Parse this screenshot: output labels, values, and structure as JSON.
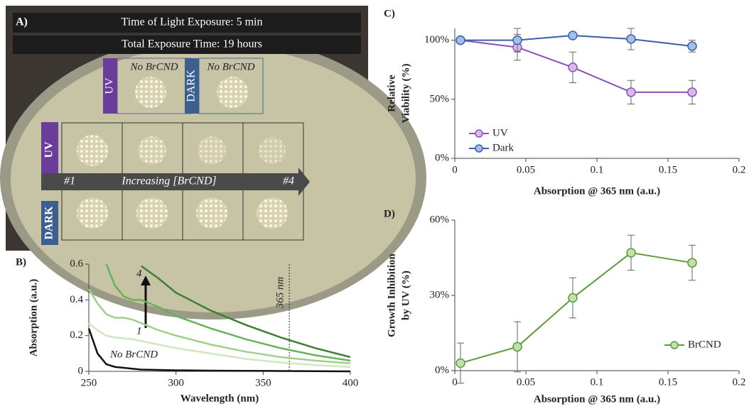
{
  "photo": {
    "label": "A)",
    "banner": [
      "Time of Light Exposure: 5 min",
      "Total Exposure Time: 19 hours"
    ],
    "controls": [
      {
        "condition": "UV",
        "sample": "No BrCND"
      },
      {
        "condition": "DARK",
        "sample": "No BrCND"
      }
    ],
    "rows": [
      "UV",
      "DARK"
    ],
    "arrow": {
      "start": "#1",
      "text": "Increasing [BrCND]",
      "end": "#4"
    }
  },
  "chart_data": [
    {
      "type": "line",
      "panel_label": "B)",
      "x_label": "Wavelength (nm)",
      "y_label": [
        "Absorption (a.u.)"
      ],
      "x": [
        250,
        255,
        260,
        265,
        270,
        275,
        280,
        290,
        300,
        320,
        340,
        360,
        380,
        400
      ],
      "xlim": [
        250,
        400
      ],
      "xticks": [
        250,
        300,
        350,
        400
      ],
      "ylim": [
        0,
        0.6
      ],
      "yticks": [
        0,
        0.2,
        0.4,
        0.6
      ],
      "annotations": [
        {
          "text": "365 nm",
          "x": 365
        }
      ],
      "series": [
        {
          "name": "No BrCND",
          "color": "#111111",
          "values": [
            0.24,
            0.1,
            0.04,
            0.025,
            0.02,
            0.015,
            0.01,
            0.008,
            0.006,
            0.004,
            0.003,
            0.002,
            0.001,
            0
          ]
        },
        {
          "name": "1",
          "color": "#cfe8bd",
          "values": [
            0.27,
            0.23,
            0.2,
            0.19,
            0.185,
            0.18,
            0.17,
            0.15,
            0.13,
            0.1,
            0.07,
            0.05,
            0.035,
            0.025
          ]
        },
        {
          "color": "#9fd08a",
          "values": [
            0.46,
            0.38,
            0.32,
            0.3,
            0.3,
            0.29,
            0.27,
            0.23,
            0.2,
            0.15,
            0.11,
            0.08,
            0.06,
            0.045
          ]
        },
        {
          "color": "#6bb05a",
          "values": [
            null,
            null,
            0.6,
            0.48,
            0.42,
            0.4,
            0.4,
            0.36,
            0.31,
            0.24,
            0.18,
            0.13,
            0.09,
            0.06
          ]
        },
        {
          "name": "4",
          "color": "#3f7f34",
          "values": [
            null,
            null,
            null,
            null,
            null,
            null,
            0.59,
            0.52,
            0.44,
            0.34,
            0.26,
            0.19,
            0.13,
            0.08
          ]
        }
      ]
    },
    {
      "type": "line",
      "markers": true,
      "legend": "lower left",
      "panel_label": "C)",
      "x_label": "Absorption @ 365 nm (a.u.)",
      "y_label": [
        "Relative",
        "Viability (%)"
      ],
      "x": [
        0.004,
        0.044,
        0.083,
        0.124,
        0.167
      ],
      "xlim": [
        0,
        0.2
      ],
      "xticks": [
        0,
        0.05,
        0.1,
        0.15,
        0.2
      ],
      "ylim": [
        0,
        110
      ],
      "yticks": [
        {
          "value": 0,
          "label": "0%"
        },
        {
          "value": 50,
          "label": "50%"
        },
        {
          "value": 100,
          "label": "100%"
        }
      ],
      "series": [
        {
          "name": "UV",
          "color": "#8e4fb8",
          "fill": "#d9b8ec",
          "values": [
            100,
            94,
            77,
            56,
            56
          ],
          "errors": [
            0,
            11,
            13,
            10,
            10
          ]
        },
        {
          "name": "Dark",
          "color": "#3c5ea8",
          "fill": "#9fc0ea",
          "values": [
            100,
            100,
            104,
            101,
            95
          ],
          "errors": [
            0,
            10,
            0,
            9,
            5
          ]
        }
      ]
    },
    {
      "type": "line",
      "markers": true,
      "legend": "lower right",
      "panel_label": "D)",
      "x_label": "Absorption @ 365 nm (a.u.)",
      "y_label": [
        "Growth Inhibition",
        "by UV (%)"
      ],
      "x": [
        0.004,
        0.044,
        0.083,
        0.124,
        0.167
      ],
      "xlim": [
        0,
        0.2
      ],
      "xticks": [
        0,
        0.05,
        0.1,
        0.15,
        0.2
      ],
      "ylim": [
        0,
        60
      ],
      "yticks": [
        {
          "value": 0,
          "label": "0%"
        },
        {
          "value": 30,
          "label": "30%"
        },
        {
          "value": 60,
          "label": "60%"
        }
      ],
      "series": [
        {
          "name": "BrCND",
          "color": "#5e9a3e",
          "fill": "#c3e0a8",
          "values": [
            3,
            9.5,
            29,
            47,
            43
          ],
          "errors": [
            8,
            10,
            8,
            7,
            7
          ]
        }
      ]
    }
  ]
}
